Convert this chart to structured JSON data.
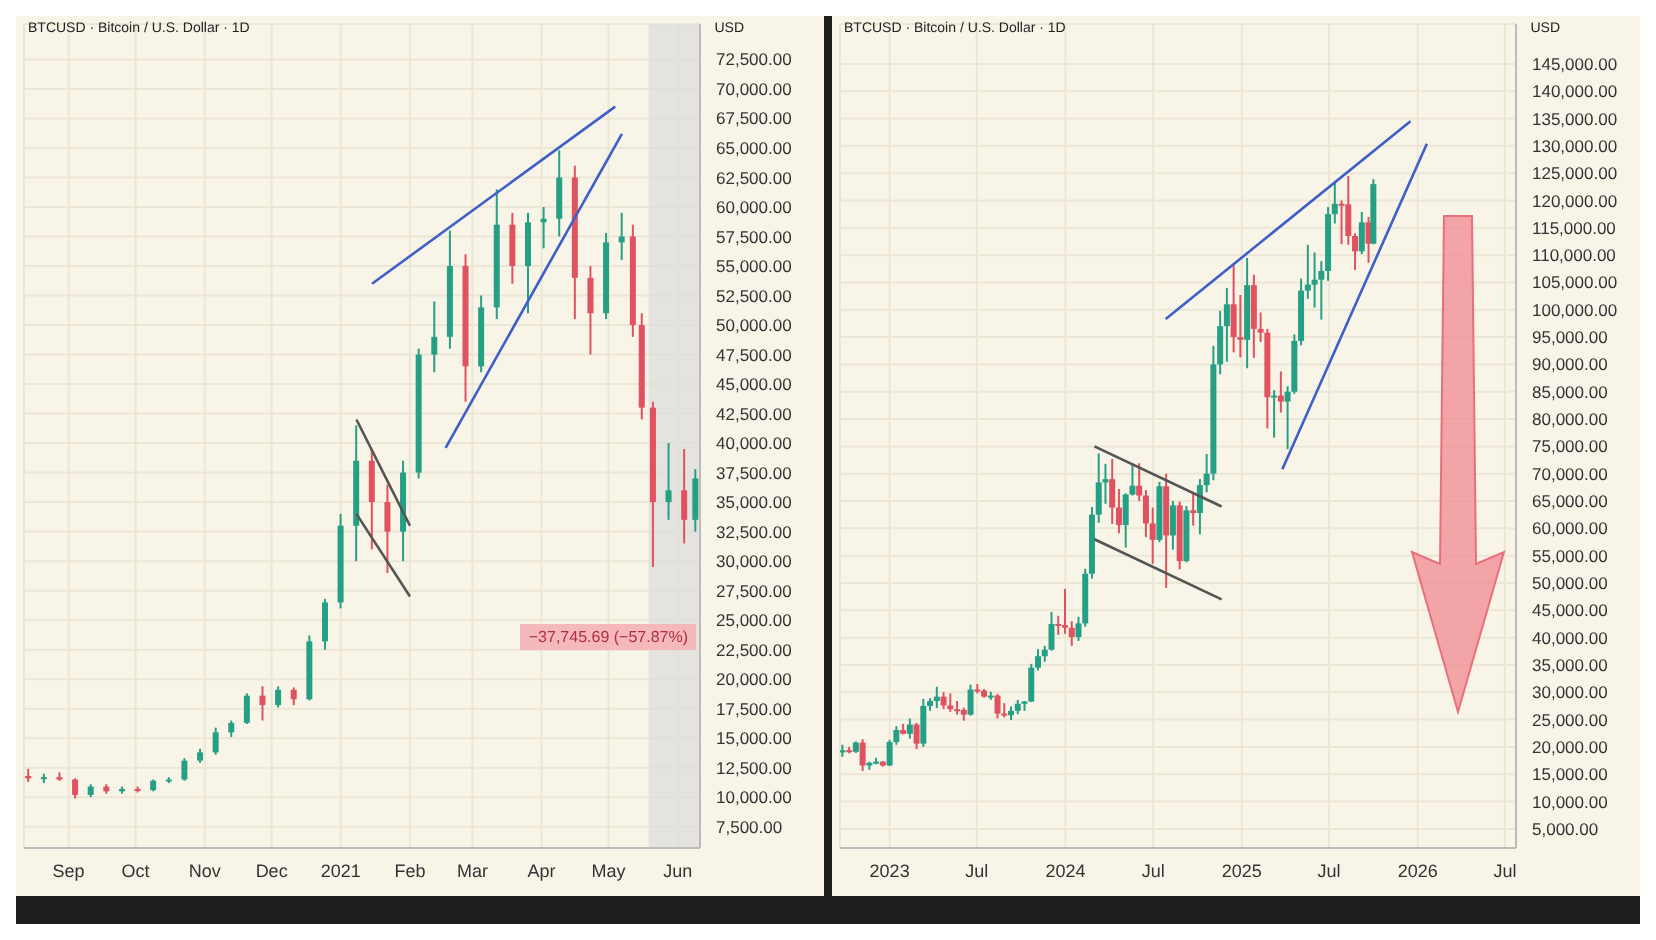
{
  "chart_data": [
    {
      "type": "candlestick",
      "title": "BTCUSD · Bitcoin / U.S. Dollar · 1D",
      "ylabel": "USD",
      "x": [
        "2020-08-14",
        "2020-08-21",
        "2020-08-28",
        "2020-09-04",
        "2020-09-11",
        "2020-09-18",
        "2020-09-25",
        "2020-10-02",
        "2020-10-09",
        "2020-10-16",
        "2020-10-23",
        "2020-10-30",
        "2020-11-06",
        "2020-11-13",
        "2020-11-20",
        "2020-11-27",
        "2020-12-04",
        "2020-12-11",
        "2020-12-18",
        "2020-12-25",
        "2021-01-01",
        "2021-01-08",
        "2021-01-15",
        "2021-01-22",
        "2021-01-29",
        "2021-02-05",
        "2021-02-12",
        "2021-02-19",
        "2021-02-26",
        "2021-03-05",
        "2021-03-12",
        "2021-03-19",
        "2021-03-26",
        "2021-04-02",
        "2021-04-09",
        "2021-04-16",
        "2021-04-23",
        "2021-04-30",
        "2021-05-07",
        "2021-05-12",
        "2021-05-16",
        "2021-05-21",
        "2021-05-28",
        "2021-06-04",
        "2021-06-09"
      ],
      "ohlc": [
        [
          11800,
          12400,
          11300,
          11600
        ],
        [
          11600,
          12000,
          11200,
          11700
        ],
        [
          11700,
          12100,
          11400,
          11500
        ],
        [
          11500,
          11600,
          9900,
          10200
        ],
        [
          10200,
          11100,
          10000,
          10900
        ],
        [
          10900,
          11100,
          10300,
          10500
        ],
        [
          10500,
          10900,
          10300,
          10700
        ],
        [
          10700,
          10900,
          10400,
          10600
        ],
        [
          10600,
          11500,
          10500,
          11400
        ],
        [
          11400,
          11700,
          11200,
          11500
        ],
        [
          11500,
          13300,
          11400,
          13100
        ],
        [
          13100,
          14100,
          12900,
          13800
        ],
        [
          13800,
          15900,
          13600,
          15500
        ],
        [
          15500,
          16500,
          15100,
          16300
        ],
        [
          16300,
          18800,
          16200,
          18600
        ],
        [
          18600,
          19400,
          16500,
          17800
        ],
        [
          17800,
          19400,
          17600,
          19100
        ],
        [
          19100,
          19300,
          17800,
          18300
        ],
        [
          18300,
          23700,
          18200,
          23200
        ],
        [
          23200,
          26800,
          22500,
          26500
        ],
        [
          26500,
          34000,
          26000,
          33000
        ],
        [
          33000,
          41500,
          30000,
          38500
        ],
        [
          38500,
          39500,
          31000,
          35000
        ],
        [
          35000,
          36500,
          29000,
          32500
        ],
        [
          32500,
          38500,
          30000,
          37500
        ],
        [
          37500,
          48000,
          37000,
          47500
        ],
        [
          47500,
          52000,
          46000,
          49000
        ],
        [
          49000,
          58000,
          48000,
          55000
        ],
        [
          55000,
          56000,
          43500,
          46500
        ],
        [
          46500,
          52500,
          46000,
          51500
        ],
        [
          51500,
          61500,
          50500,
          58500
        ],
        [
          58500,
          59500,
          53500,
          55000
        ],
        [
          55000,
          59500,
          51000,
          58700
        ],
        [
          58700,
          60000,
          56500,
          59000
        ],
        [
          59000,
          64800,
          57500,
          62500
        ],
        [
          62500,
          63500,
          50500,
          54000
        ],
        [
          54000,
          55000,
          47500,
          51000
        ],
        [
          51000,
          57800,
          50500,
          57000
        ],
        [
          57000,
          59500,
          55500,
          57500
        ],
        [
          57500,
          58500,
          49000,
          50000
        ],
        [
          50000,
          51000,
          42000,
          43000
        ],
        [
          43000,
          43500,
          29500,
          35000
        ],
        [
          35000,
          40000,
          33500,
          36000
        ],
        [
          36000,
          39500,
          31500,
          33500
        ],
        [
          33500,
          37800,
          32500,
          37000
        ]
      ],
      "series": [
        {
          "type": "line",
          "color": "#3f5fc8",
          "x": [
            "2021-01-15",
            "2021-05-04"
          ],
          "values": [
            53500,
            68500
          ]
        },
        {
          "type": "line",
          "color": "#3f5fc8",
          "x": [
            "2021-02-17",
            "2021-05-07"
          ],
          "values": [
            39600,
            66200
          ]
        },
        {
          "type": "line",
          "color": "#555555",
          "x": [
            "2021-01-08",
            "2021-02-01"
          ],
          "values": [
            42000,
            33000
          ]
        },
        {
          "type": "line",
          "color": "#555555",
          "x": [
            "2021-01-08",
            "2021-02-01"
          ],
          "values": [
            34000,
            27000
          ]
        }
      ],
      "bands": [
        {
          "axis": "x",
          "from": "2021-05-19",
          "to": "2021-06-11",
          "color": "#dcdcdc"
        }
      ],
      "annotations": [
        "−37,745.69 (−57.87%)"
      ],
      "xlim": [
        "2020-08-12",
        "2021-06-11"
      ],
      "xticks": [
        {
          "value": "2020-09-01",
          "label": "Sep"
        },
        {
          "value": "2020-10-01",
          "label": "Oct"
        },
        {
          "value": "2020-11-01",
          "label": "Nov"
        },
        {
          "value": "2020-12-01",
          "label": "Dec"
        },
        {
          "value": "2021-01-01",
          "label": "2021"
        },
        {
          "value": "2021-02-01",
          "label": "Feb"
        },
        {
          "value": "2021-03-01",
          "label": "Mar"
        },
        {
          "value": "2021-04-01",
          "label": "Apr"
        },
        {
          "value": "2021-05-01",
          "label": "May"
        },
        {
          "value": "2021-06-01",
          "label": "Jun"
        }
      ],
      "ylim": [
        5700,
        75500
      ],
      "yticks": [
        {
          "value": 7500,
          "label": "7,500.00"
        },
        {
          "value": 10000,
          "label": "10,000.00"
        },
        {
          "value": 12500,
          "label": "12,500.00"
        },
        {
          "value": 15000,
          "label": "15,000.00"
        },
        {
          "value": 17500,
          "label": "17,500.00"
        },
        {
          "value": 20000,
          "label": "20,000.00"
        },
        {
          "value": 22500,
          "label": "22,500.00"
        },
        {
          "value": 25000,
          "label": "25,000.00"
        },
        {
          "value": 27500,
          "label": "27,500.00"
        },
        {
          "value": 30000,
          "label": "30,000.00"
        },
        {
          "value": 32500,
          "label": "32,500.00"
        },
        {
          "value": 35000,
          "label": "35,000.00"
        },
        {
          "value": 37500,
          "label": "37,500.00"
        },
        {
          "value": 40000,
          "label": "40,000.00"
        },
        {
          "value": 42500,
          "label": "42,500.00"
        },
        {
          "value": 45000,
          "label": "45,000.00"
        },
        {
          "value": 47500,
          "label": "47,500.00"
        },
        {
          "value": 50000,
          "label": "50,000.00"
        },
        {
          "value": 52500,
          "label": "52,500.00"
        },
        {
          "value": 55000,
          "label": "55,000.00"
        },
        {
          "value": 57500,
          "label": "57,500.00"
        },
        {
          "value": 60000,
          "label": "60,000.00"
        },
        {
          "value": 62500,
          "label": "62,500.00"
        },
        {
          "value": 65000,
          "label": "65,000.00"
        },
        {
          "value": 67500,
          "label": "67,500.00"
        },
        {
          "value": 70000,
          "label": "70,000.00"
        },
        {
          "value": 72500,
          "label": "72,500.00"
        }
      ],
      "grid": true
    },
    {
      "type": "candlestick",
      "title": "BTCUSD · Bitcoin / U.S. Dollar · 1D",
      "ylabel": "USD",
      "x": [
        "2022-09-25",
        "2022-10-09",
        "2022-10-23",
        "2022-11-06",
        "2022-11-20",
        "2022-12-04",
        "2022-12-18",
        "2023-01-01",
        "2023-01-15",
        "2023-01-29",
        "2023-02-12",
        "2023-02-26",
        "2023-03-12",
        "2023-03-26",
        "2023-04-09",
        "2023-04-23",
        "2023-05-07",
        "2023-05-21",
        "2023-06-04",
        "2023-06-18",
        "2023-07-02",
        "2023-07-16",
        "2023-07-30",
        "2023-08-13",
        "2023-08-27",
        "2023-09-10",
        "2023-09-24",
        "2023-10-08",
        "2023-10-22",
        "2023-11-05",
        "2023-11-19",
        "2023-12-03",
        "2023-12-17",
        "2023-12-31",
        "2024-01-14",
        "2024-01-28",
        "2024-02-11",
        "2024-02-25",
        "2024-03-10",
        "2024-03-24",
        "2024-04-07",
        "2024-04-21",
        "2024-05-05",
        "2024-05-19",
        "2024-06-02",
        "2024-06-16",
        "2024-06-30",
        "2024-07-14",
        "2024-07-28",
        "2024-08-11",
        "2024-08-25",
        "2024-09-08",
        "2024-09-22",
        "2024-10-06",
        "2024-10-20",
        "2024-11-03",
        "2024-11-17",
        "2024-12-01",
        "2024-12-15",
        "2024-12-29",
        "2025-01-12",
        "2025-01-26",
        "2025-02-09",
        "2025-02-23",
        "2025-03-09",
        "2025-03-23",
        "2025-04-06",
        "2025-04-20",
        "2025-05-04",
        "2025-05-18",
        "2025-06-01",
        "2025-06-15",
        "2025-06-29",
        "2025-07-13",
        "2025-07-27",
        "2025-08-10",
        "2025-08-24",
        "2025-09-07",
        "2025-09-21",
        "2025-10-01"
      ],
      "ohlc": [
        [
          19000,
          20400,
          18200,
          19400
        ],
        [
          19400,
          20000,
          18800,
          19100
        ],
        [
          19100,
          21000,
          18900,
          20800
        ],
        [
          20800,
          21400,
          15600,
          16600
        ],
        [
          16600,
          17300,
          15800,
          17100
        ],
        [
          17100,
          18000,
          16800,
          17300
        ],
        [
          17300,
          17400,
          16400,
          16600
        ],
        [
          16600,
          21300,
          16500,
          20900
        ],
        [
          20900,
          23800,
          20400,
          23100
        ],
        [
          23100,
          24200,
          22300,
          22400
        ],
        [
          22400,
          25200,
          21500,
          24100
        ],
        [
          24100,
          24400,
          19600,
          20600
        ],
        [
          20600,
          28800,
          20000,
          27500
        ],
        [
          27500,
          28900,
          26600,
          28400
        ],
        [
          28400,
          31000,
          27100,
          29200
        ],
        [
          29200,
          30000,
          26900,
          27600
        ],
        [
          27600,
          29800,
          26400,
          26900
        ],
        [
          26900,
          28400,
          25900,
          26800
        ],
        [
          26800,
          27200,
          24800,
          25900
        ],
        [
          25900,
          31400,
          25700,
          30500
        ],
        [
          30500,
          31500,
          29800,
          30300
        ],
        [
          30300,
          30600,
          29000,
          29200
        ],
        [
          29200,
          30100,
          28600,
          29400
        ],
        [
          29400,
          29700,
          25200,
          26100
        ],
        [
          26100,
          28000,
          25400,
          25800
        ],
        [
          25800,
          27400,
          24900,
          26600
        ],
        [
          26600,
          28600,
          26000,
          27900
        ],
        [
          27900,
          28400,
          26600,
          28300
        ],
        [
          28300,
          35200,
          28200,
          34500
        ],
        [
          34500,
          37900,
          34000,
          36600
        ],
        [
          36600,
          38500,
          35600,
          37800
        ],
        [
          37800,
          44700,
          37600,
          42500
        ],
        [
          42500,
          44000,
          40500,
          42300
        ],
        [
          42300,
          48900,
          40700,
          41800
        ],
        [
          41800,
          43000,
          38500,
          40100
        ],
        [
          40100,
          43800,
          39400,
          42600
        ],
        [
          42600,
          52600,
          42000,
          51700
        ],
        [
          51700,
          63900,
          50800,
          62500
        ],
        [
          62500,
          73700,
          61000,
          68400
        ],
        [
          68400,
          71800,
          64500,
          69000
        ],
        [
          69000,
          72700,
          60800,
          63800
        ],
        [
          63800,
          67200,
          59100,
          60600
        ],
        [
          60600,
          66400,
          56500,
          66200
        ],
        [
          66200,
          71900,
          66000,
          67800
        ],
        [
          67800,
          71900,
          65000,
          66000
        ],
        [
          66000,
          67000,
          58400,
          60900
        ],
        [
          60900,
          63800,
          53500,
          57900
        ],
        [
          57900,
          68500,
          57500,
          67700
        ],
        [
          67700,
          70000,
          49100,
          58700
        ],
        [
          58700,
          65000,
          56100,
          64200
        ],
        [
          64200,
          64900,
          52500,
          54000
        ],
        [
          54000,
          64100,
          53800,
          63300
        ],
        [
          63300,
          66500,
          60500,
          62800
        ],
        [
          62800,
          69000,
          58900,
          67900
        ],
        [
          67900,
          73600,
          66600,
          70000
        ],
        [
          70000,
          93400,
          68800,
          90000
        ],
        [
          90000,
          99800,
          88200,
          97000
        ],
        [
          97000,
          104000,
          90500,
          101000
        ],
        [
          101000,
          108300,
          92200,
          95000
        ],
        [
          95000,
          102700,
          91300,
          94500
        ],
        [
          94500,
          109500,
          89300,
          104500
        ],
        [
          104500,
          106400,
          91200,
          96500
        ],
        [
          96500,
          99500,
          94100,
          95800
        ],
        [
          95800,
          96500,
          78300,
          84000
        ],
        [
          84000,
          85300,
          76600,
          84300
        ],
        [
          84300,
          88700,
          81200,
          83200
        ],
        [
          83200,
          86000,
          74500,
          85000
        ],
        [
          85000,
          95500,
          84600,
          94300
        ],
        [
          94300,
          105700,
          93500,
          103500
        ],
        [
          103500,
          111900,
          102000,
          104600
        ],
        [
          104600,
          110500,
          100400,
          105500
        ],
        [
          105500,
          108900,
          98200,
          107100
        ],
        [
          107100,
          118800,
          105300,
          117500
        ],
        [
          117500,
          123200,
          115800,
          119400
        ],
        [
          119400,
          120000,
          112000,
          119300
        ],
        [
          119300,
          124500,
          111900,
          113500
        ],
        [
          113500,
          114000,
          107300,
          110700
        ],
        [
          110700,
          117900,
          110200,
          116000
        ],
        [
          116000,
          117000,
          108600,
          112100
        ],
        [
          112100,
          123900,
          112000,
          123000
        ]
      ],
      "series": [
        {
          "type": "line",
          "color": "#3f5fc8",
          "x": [
            "2024-07-27",
            "2025-12-17"
          ],
          "values": [
            98300,
            134500
          ]
        },
        {
          "type": "line",
          "color": "#3f5fc8",
          "x": [
            "2025-03-26",
            "2026-01-20"
          ],
          "values": [
            70800,
            130400
          ]
        },
        {
          "type": "line",
          "color": "#555555",
          "x": [
            "2024-03-01",
            "2024-11-20"
          ],
          "values": [
            75000,
            64000
          ]
        },
        {
          "type": "line",
          "color": "#555555",
          "x": [
            "2024-03-01",
            "2024-11-20"
          ],
          "values": [
            58000,
            47000
          ]
        }
      ],
      "xlim": [
        "2022-09-20",
        "2026-07-24"
      ],
      "xticks": [
        {
          "value": "2023-01-01",
          "label": "2023"
        },
        {
          "value": "2023-07-01",
          "label": "Jul"
        },
        {
          "value": "2024-01-01",
          "label": "2024"
        },
        {
          "value": "2024-07-01",
          "label": "Jul"
        },
        {
          "value": "2025-01-01",
          "label": "2025"
        },
        {
          "value": "2025-07-01",
          "label": "Jul"
        },
        {
          "value": "2026-01-01",
          "label": "2026"
        },
        {
          "value": "2026-07-01",
          "label": "Jul"
        }
      ],
      "ylim": [
        1500,
        152300
      ],
      "yticks": [
        {
          "value": 5000,
          "label": "5,000.00"
        },
        {
          "value": 10000,
          "label": "10,000.00"
        },
        {
          "value": 15000,
          "label": "15,000.00"
        },
        {
          "value": 20000,
          "label": "20,000.00"
        },
        {
          "value": 25000,
          "label": "25,000.00"
        },
        {
          "value": 30000,
          "label": "30,000.00"
        },
        {
          "value": 35000,
          "label": "35,000.00"
        },
        {
          "value": 40000,
          "label": "40,000.00"
        },
        {
          "value": 45000,
          "label": "45,000.00"
        },
        {
          "value": 50000,
          "label": "50,000.00"
        },
        {
          "value": 55000,
          "label": "55,000.00"
        },
        {
          "value": 60000,
          "label": "60,000.00"
        },
        {
          "value": 65000,
          "label": "65,000.00"
        },
        {
          "value": 70000,
          "label": "70,000.00"
        },
        {
          "value": 75000,
          "label": "75,000.00"
        },
        {
          "value": 80000,
          "label": "80,000.00"
        },
        {
          "value": 85000,
          "label": "85,000.00"
        },
        {
          "value": 90000,
          "label": "90,000.00"
        },
        {
          "value": 95000,
          "label": "95,000.00"
        },
        {
          "value": 100000,
          "label": "100,000.00"
        },
        {
          "value": 105000,
          "label": "105,000.00"
        },
        {
          "value": 110000,
          "label": "110,000.00"
        },
        {
          "value": 115000,
          "label": "115,000.00"
        },
        {
          "value": 120000,
          "label": "120,000.00"
        },
        {
          "value": 125000,
          "label": "125,000.00"
        },
        {
          "value": 130000,
          "label": "130,000.00"
        },
        {
          "value": 135000,
          "label": "135,000.00"
        },
        {
          "value": 140000,
          "label": "140,000.00"
        },
        {
          "value": 145000,
          "label": "145,000.00"
        }
      ],
      "grid": true
    }
  ]
}
